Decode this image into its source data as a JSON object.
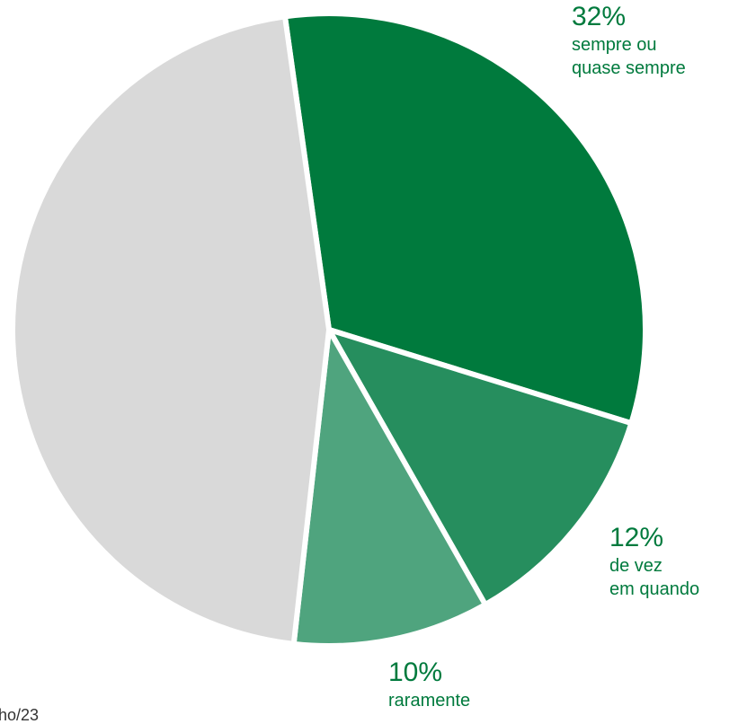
{
  "chart_data": {
    "type": "pie",
    "categories": [
      "sempre ou\nquase sempre",
      "de vez\nem quando",
      "raramente",
      null
    ],
    "values": [
      32,
      12,
      10,
      46
    ],
    "value_labels": [
      "32%",
      "12%",
      "10%",
      null
    ],
    "colors": [
      "#007a3d",
      "#268e5e",
      "#4fa47e",
      "#d9d9d9"
    ],
    "label_color": "#007a3d",
    "source": "ho/23"
  }
}
